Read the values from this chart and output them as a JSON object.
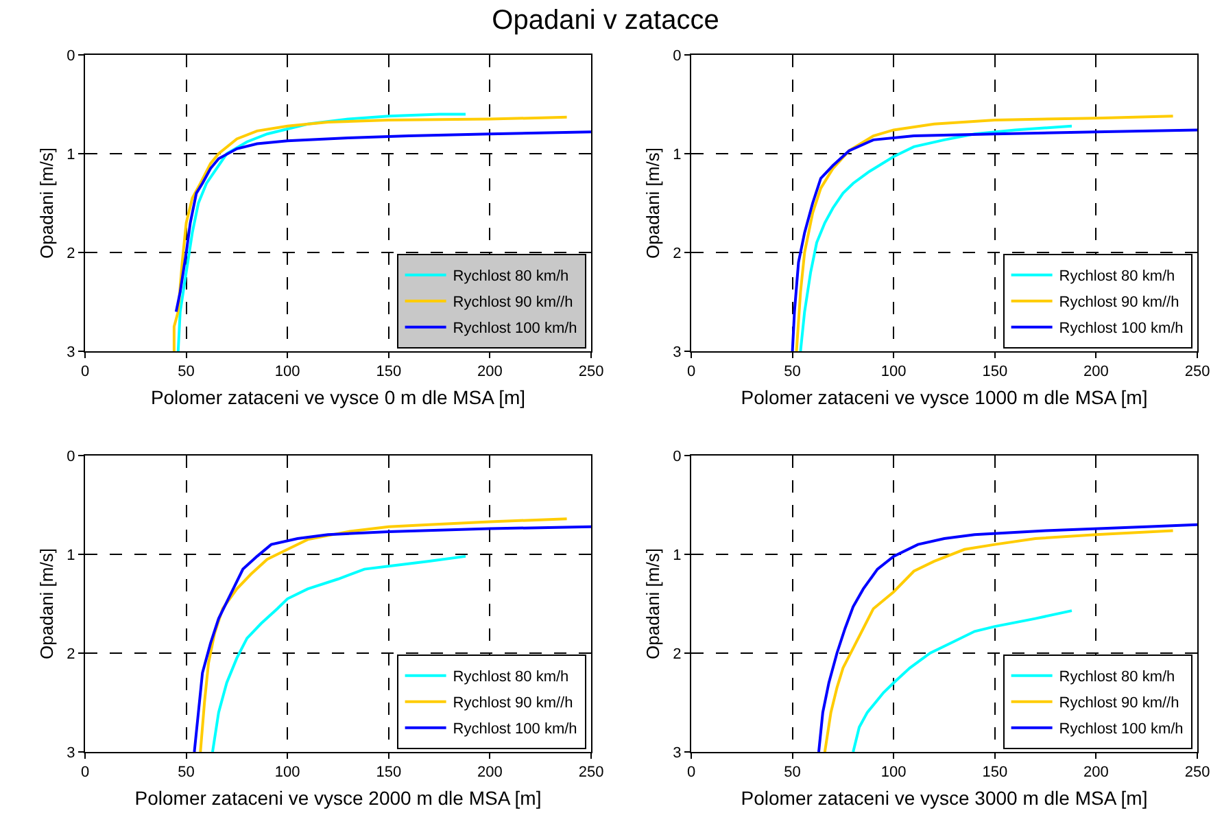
{
  "chart_data": [
    {
      "type": "line",
      "title": "Opadani v zatacce",
      "xlabel": "Polomer zataceni ve vysce 0 m dle MSA [m]",
      "ylabel": "Opadani [m/s]",
      "xlim": [
        0,
        250
      ],
      "xticks": [
        0,
        50,
        100,
        150,
        200,
        250
      ],
      "ylim": [
        3,
        0
      ],
      "yticks": [
        0,
        1,
        2,
        3
      ],
      "grid": true,
      "legend": "bottom right",
      "marker": "none",
      "line_style": "solid",
      "series": [
        {
          "name": "Rychlost 80 km/h",
          "color": "#00ffff",
          "x": [
            46,
            47,
            50,
            53,
            56,
            60,
            65,
            70,
            80,
            90,
            100,
            110,
            130,
            150,
            175,
            188
          ],
          "values": [
            3,
            2.6,
            2.2,
            1.8,
            1.5,
            1.3,
            1.15,
            1.0,
            0.88,
            0.8,
            0.75,
            0.7,
            0.65,
            0.62,
            0.6,
            0.6
          ]
        },
        {
          "name": "Rychlost 90 km//h",
          "color": "#ffcc00",
          "x": [
            44,
            44,
            46,
            48,
            50,
            53,
            57,
            62,
            66,
            75,
            85,
            100,
            120,
            150,
            200,
            238
          ],
          "values": [
            3,
            2.75,
            2.6,
            2.1,
            1.7,
            1.45,
            1.3,
            1.1,
            1.0,
            0.85,
            0.77,
            0.72,
            0.68,
            0.66,
            0.65,
            0.63
          ]
        },
        {
          "name": "Rychlost 100 km/h",
          "color": "#0000ff",
          "x": [
            45,
            47,
            50,
            52,
            55,
            58,
            62,
            66,
            75,
            85,
            100,
            130,
            160,
            200,
            250
          ],
          "values": [
            2.6,
            2.4,
            2.0,
            1.7,
            1.4,
            1.3,
            1.15,
            1.05,
            0.95,
            0.9,
            0.87,
            0.84,
            0.82,
            0.8,
            0.78
          ]
        }
      ]
    },
    {
      "type": "line",
      "xlabel": "Polomer zataceni ve vysce 1000 m dle MSA [m]",
      "ylabel": "Opadani [m/s]",
      "xlim": [
        0,
        250
      ],
      "xticks": [
        0,
        50,
        100,
        150,
        200,
        250
      ],
      "ylim": [
        3,
        0
      ],
      "yticks": [
        0,
        1,
        2,
        3
      ],
      "grid": true,
      "legend": "bottom right",
      "marker": "none",
      "line_style": "solid",
      "series": [
        {
          "name": "Rychlost 80 km/h",
          "color": "#00ffff",
          "x": [
            54,
            56,
            59,
            62,
            66,
            70,
            75,
            80,
            88,
            100,
            110,
            125,
            140,
            160,
            188
          ],
          "values": [
            3,
            2.6,
            2.2,
            1.9,
            1.7,
            1.55,
            1.4,
            1.3,
            1.18,
            1.03,
            0.93,
            0.86,
            0.8,
            0.76,
            0.72
          ]
        },
        {
          "name": "Rychlost 90 km//h",
          "color": "#ffcc00",
          "x": [
            52,
            54,
            56,
            60,
            64,
            70,
            78,
            90,
            100,
            120,
            150,
            200,
            238
          ],
          "values": [
            3,
            2.4,
            2.0,
            1.6,
            1.35,
            1.15,
            0.97,
            0.82,
            0.76,
            0.7,
            0.66,
            0.64,
            0.62
          ]
        },
        {
          "name": "Rychlost 100 km/h",
          "color": "#0000ff",
          "x": [
            50,
            51,
            53,
            56,
            60,
            64,
            70,
            78,
            90,
            110,
            150,
            200,
            250
          ],
          "values": [
            3,
            2.6,
            2.1,
            1.8,
            1.5,
            1.25,
            1.12,
            0.97,
            0.86,
            0.82,
            0.8,
            0.78,
            0.76
          ]
        }
      ]
    },
    {
      "type": "line",
      "xlabel": "Polomer zataceni ve vysce 2000 m dle MSA [m]",
      "ylabel": "Opadani [m/s]",
      "xlim": [
        0,
        250
      ],
      "xticks": [
        0,
        50,
        100,
        150,
        200,
        250
      ],
      "ylim": [
        3,
        0
      ],
      "yticks": [
        0,
        1,
        2,
        3
      ],
      "grid": true,
      "legend": "bottom right",
      "marker": "none",
      "line_style": "solid",
      "series": [
        {
          "name": "Rychlost 80 km/h",
          "color": "#00ffff",
          "x": [
            63,
            66,
            70,
            75,
            80,
            87,
            95,
            100,
            110,
            125,
            138,
            150,
            170,
            188
          ],
          "values": [
            3,
            2.6,
            2.3,
            2.05,
            1.85,
            1.7,
            1.55,
            1.45,
            1.35,
            1.25,
            1.15,
            1.12,
            1.07,
            1.02
          ]
        },
        {
          "name": "Rychlost 90 km//h",
          "color": "#ffcc00",
          "x": [
            57,
            59,
            61,
            64,
            68,
            75,
            82,
            90,
            100,
            110,
            130,
            150,
            170,
            200,
            238
          ],
          "values": [
            3,
            2.5,
            2.1,
            1.8,
            1.55,
            1.35,
            1.2,
            1.05,
            0.95,
            0.85,
            0.77,
            0.72,
            0.7,
            0.67,
            0.64
          ]
        },
        {
          "name": "Rychlost 100 km/h",
          "color": "#0000ff",
          "x": [
            54,
            56,
            58,
            62,
            66,
            72,
            78,
            85,
            92,
            105,
            120,
            150,
            200,
            250
          ],
          "values": [
            3,
            2.6,
            2.2,
            1.9,
            1.65,
            1.4,
            1.15,
            1.02,
            0.9,
            0.84,
            0.8,
            0.77,
            0.74,
            0.72
          ]
        }
      ]
    },
    {
      "type": "line",
      "xlabel": "Polomer zataceni ve vysce 3000 m dle MSA [m]",
      "ylabel": "Opadani [m/s]",
      "xlim": [
        0,
        250
      ],
      "xticks": [
        0,
        50,
        100,
        150,
        200,
        250
      ],
      "ylim": [
        3,
        0
      ],
      "yticks": [
        0,
        1,
        2,
        3
      ],
      "grid": true,
      "legend": "bottom right",
      "marker": "none",
      "line_style": "solid",
      "series": [
        {
          "name": "Rychlost 80 km/h",
          "color": "#00ffff",
          "x": [
            80,
            83,
            87,
            95,
            100,
            108,
            118,
            130,
            140,
            150,
            170,
            188
          ],
          "values": [
            3,
            2.75,
            2.6,
            2.4,
            2.3,
            2.15,
            2.0,
            1.88,
            1.78,
            1.73,
            1.65,
            1.57
          ]
        },
        {
          "name": "Rychlost 90 km//h",
          "color": "#ffcc00",
          "x": [
            66,
            69,
            72,
            75,
            80,
            85,
            90,
            100,
            110,
            120,
            135,
            150,
            170,
            200,
            238
          ],
          "values": [
            3,
            2.6,
            2.35,
            2.15,
            1.95,
            1.75,
            1.55,
            1.38,
            1.17,
            1.07,
            0.95,
            0.9,
            0.84,
            0.8,
            0.76
          ]
        },
        {
          "name": "Rychlost 100 km/h",
          "color": "#0000ff",
          "x": [
            63,
            65,
            68,
            72,
            76,
            80,
            85,
            92,
            100,
            112,
            125,
            140,
            175,
            225,
            250
          ],
          "values": [
            3,
            2.6,
            2.3,
            2.0,
            1.75,
            1.53,
            1.35,
            1.15,
            1.02,
            0.9,
            0.84,
            0.8,
            0.76,
            0.72,
            0.7
          ]
        }
      ]
    }
  ]
}
